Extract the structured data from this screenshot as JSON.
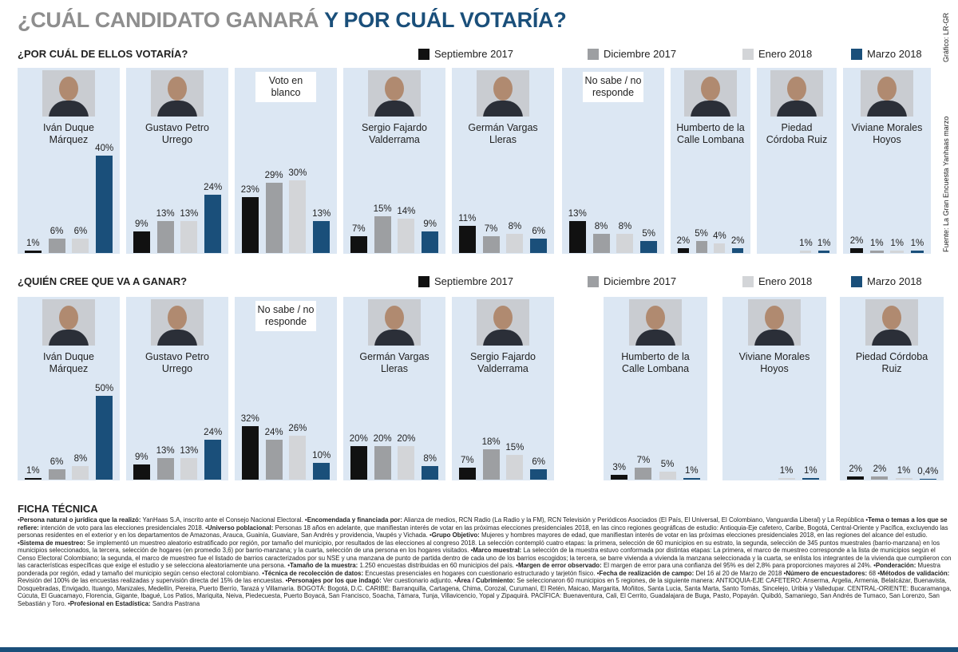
{
  "header": {
    "title_gray": "¿CUÁL CANDIDATO GANARÁ",
    "title_blue": "Y POR CUÁL VOTARÍA?",
    "credit": "Gráfico: LR-GR",
    "source": "Fuente: La Gran Encuesta Yanhaas marzo"
  },
  "chart_data": [
    {
      "type": "bar",
      "title": "¿POR CUÁL DE ELLOS VOTARÍA?",
      "categories": [
        "Iván Duque Márquez",
        "Gustavo Petro Urrego",
        "Voto en blanco",
        "Sergio Fajardo Valderrama",
        "Germán Vargas Lleras",
        "No sabe / no responde",
        "Humberto de la Calle Lombana",
        "Piedad Córdoba Ruiz",
        "Viviane Morales Hoyos"
      ],
      "series": [
        {
          "name": "Septiembre 2017",
          "color": "#111111",
          "values": [
            1,
            9,
            23,
            7,
            11,
            13,
            2,
            null,
            2
          ],
          "value_labels": [
            "1%",
            "9%",
            "23%",
            "7%",
            "11%",
            "13%",
            "2%",
            null,
            "2%"
          ]
        },
        {
          "name": "Diciembre 2017",
          "color": "#9d9fa2",
          "values": [
            6,
            13,
            29,
            15,
            7,
            8,
            5,
            null,
            1
          ],
          "value_labels": [
            "6%",
            "13%",
            "29%",
            "15%",
            "7%",
            "8%",
            "5%",
            null,
            "1%"
          ]
        },
        {
          "name": "Enero 2018",
          "color": "#d3d5d8",
          "values": [
            6,
            13,
            30,
            14,
            8,
            8,
            4,
            1,
            1
          ],
          "value_labels": [
            "6%",
            "13%",
            "30%",
            "14%",
            "8%",
            "8%",
            "4%",
            "1%",
            "1%"
          ]
        },
        {
          "name": "Marzo 2018",
          "color": "#1a4f7a",
          "values": [
            40,
            24,
            13,
            9,
            6,
            5,
            2,
            1,
            1
          ],
          "value_labels": [
            "40%",
            "24%",
            "13%",
            "9%",
            "6%",
            "5%",
            "2%",
            "1%",
            "1%"
          ]
        }
      ]
    },
    {
      "type": "bar",
      "title": "¿QUIÉN CREE QUE VA A GANAR?",
      "categories": [
        "Iván Duque Márquez",
        "Gustavo Petro Urrego",
        "No sabe / no responde",
        "Germán Vargas Lleras",
        "Sergio Fajardo Valderrama",
        "Humberto de la Calle Lombana",
        "Viviane Morales Hoyos",
        "Piedad Córdoba Ruiz"
      ],
      "series": [
        {
          "name": "Septiembre 2017",
          "color": "#111111",
          "values": [
            1,
            9,
            32,
            20,
            7,
            3,
            null,
            2
          ],
          "value_labels": [
            "1%",
            "9%",
            "32%",
            "20%",
            "7%",
            "3%",
            null,
            "2%"
          ]
        },
        {
          "name": "Diciembre 2017",
          "color": "#9d9fa2",
          "values": [
            6,
            13,
            24,
            20,
            18,
            7,
            null,
            2
          ],
          "value_labels": [
            "6%",
            "13%",
            "24%",
            "20%",
            "18%",
            "7%",
            null,
            "2%"
          ]
        },
        {
          "name": "Enero 2018",
          "color": "#d3d5d8",
          "values": [
            8,
            13,
            26,
            20,
            15,
            5,
            1,
            1
          ],
          "value_labels": [
            "8%",
            "13%",
            "26%",
            "20%",
            "15%",
            "5%",
            "1%",
            "1%"
          ]
        },
        {
          "name": "Marzo 2018",
          "color": "#1a4f7a",
          "values": [
            50,
            24,
            10,
            8,
            6,
            1,
            1,
            0.4
          ],
          "value_labels": [
            "50%",
            "24%",
            "10%",
            "8%",
            "6%",
            "1%",
            "1%",
            "0,4%"
          ]
        }
      ]
    }
  ],
  "ficha": {
    "title": "FICHA TÉCNICA",
    "items": [
      {
        "label": "Persona natural o jurídica que la realizó:",
        "text": "YanHaas S.A, inscrito ante el Consejo Nacional Electoral."
      },
      {
        "label": "Encomendada y financiada por:",
        "text": "Alianza de medios, RCN Radio (La Radio y la FM), RCN Televisión y Periódicos Asociados (El País, El Universal, El Colombiano, Vanguardia Liberal) y La República"
      },
      {
        "label": "Tema o temas a los que se refiere:",
        "text": "intención de voto para las elecciones presidenciales 2018."
      },
      {
        "label": "Universo poblacional:",
        "text": "Personas 18 años en adelante, que manifiestan interés de votar en las próximas elecciones presidenciales 2018, en las cinco regiones geográficas de estudio: Antioquia-Eje cafetero, Caribe, Bogotá, Central-Oriente y Pacífica, excluyendo las personas residentes en el exterior y en los departamentos de Amazonas, Arauca, Guainía, Guaviare, San Andrés y providencia, Vaupés y Vichada."
      },
      {
        "label": "Grupo Objetivo:",
        "text": "Mujeres y hombres mayores de edad, que manifiestan interés de votar en las próximas elecciones presidenciales 2018, en las regiones del alcance del estudio."
      },
      {
        "label": "Sistema de muestreo:",
        "text": "Se implementó un muestreo aleatorio estratificado por región, por tamaño del municipio, por resultados de las elecciones al congreso 2018. La selección contempló cuatro etapas: la primera, selección de 60 municipios en su estrato, la segunda, selección de 345 puntos muestrales (barrio-manzana) en los municipios seleccionados, la tercera, selección de hogares (en promedio 3,6) por barrio-manzana; y la cuarta, selección de una persona en los hogares visitados."
      },
      {
        "label": "Marco muestral:",
        "text": "La selección de la muestra estuvo conformada por distintas etapas: La primera, el marco de muestreo corresponde a la lista de municipios según el Censo Electoral Colombiano; la segunda, el marco de muestreo fue el listado de barrios caracterizados por su NSE y una manzana de punto de partida dentro de cada uno de los barrios escogidos; la tercera, se barre vivienda a vivienda la manzana seleccionada y la cuarta, se enlista los integrantes de la vivienda que cumplieron con las características específicas que exige el estudio y se selecciona aleatoriamente una persona."
      },
      {
        "label": "Tamaño de la muestra:",
        "text": "1.250 encuestas distribuidas en 60 municipios del país."
      },
      {
        "label": "Margen de error observado:",
        "text": "El margen de error para una confianza del 95% es del 2,8% para proporciones mayores al 24%."
      },
      {
        "label": "Ponderación:",
        "text": "Muestra ponderada por región, edad y tamaño del municipio según censo electoral colombiano."
      },
      {
        "label": "Técnica de recolección de datos:",
        "text": "Encuestas presenciales en hogares con cuestionario estructurado y tarjetón físico."
      },
      {
        "label": "Fecha de realización de campo:",
        "text": "Del 16 al 20 de Marzo de 2018"
      },
      {
        "label": "Número de encuestadores:",
        "text": "68"
      },
      {
        "label": "Métodos de validación:",
        "text": "Revisión del 100% de las encuestas realizadas y supervisión directa del 15% de las encuestas."
      },
      {
        "label": "Personajes por los que indagó:",
        "text": "Ver cuestionario adjunto."
      },
      {
        "label": "Área / Cubrimiento:",
        "text": "Se seleccionaron 60 municipios en 5 regiones, de la siguiente manera: ANTIOQUIA-EJE CAFETERO: Anserma, Argelia, Armenia, Belalcázar, Buenavista, Dosquebradas, Envigado, Ituango, Manizales, Medellín, Pereira, Puerto Berrío, Tarazá y Villamaría. BOGOTÁ: Bogotá, D.C. CARIBE: Barranquilla, Cartagena, Chima, Corozal, Curumaní, El Retén, Maicao, Margarita, Moñitos, Santa Lucia, Santa Marta, Santo Tomás, Sincelejo, Uribia y Valledupar. CENTRAL-ORIENTE: Bucaramanga, Cúcuta, El Guacamayo, Florencia, Gigante, Ibagué, Los Patios, Mariquita, Neiva, Piedecuesta, Puerto Boyacá, San Francisco, Soacha, Támara, Tunja, Villavicencio, Yopal y Zipaquirá. PACÍFICA: Buenaventura, Cali, El Cerrito, Guadalajara de Buga, Pasto, Popayán. Quibdó, Samaniego, San Andrés de Tumaco, San Lorenzo, San Sebastián y Toro."
      },
      {
        "label": "Profesional en Estadística:",
        "text": "Sandra Pastrana"
      }
    ]
  }
}
